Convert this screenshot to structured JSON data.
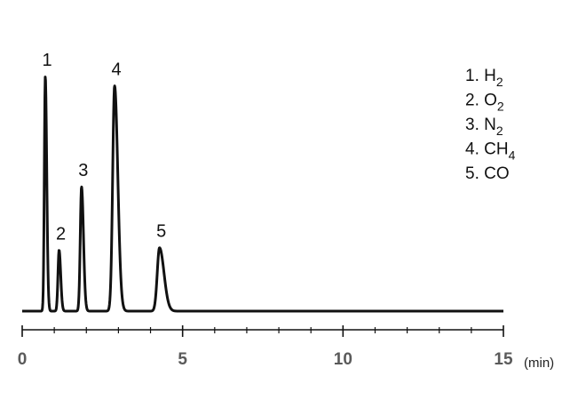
{
  "chart_data": {
    "type": "line",
    "title": "",
    "xlabel": "",
    "x_unit": "(min)",
    "ylabel": "",
    "xlim": [
      0,
      15
    ],
    "ylim": [
      0,
      1.05
    ],
    "grid": false,
    "legend_placement": "top-right",
    "x_ticks": [
      0,
      5,
      10,
      15
    ],
    "x_tick_labels": [
      "0",
      "5",
      "10",
      "15"
    ],
    "minor_tick_step": 1,
    "baseline": 0.0,
    "peaks": [
      {
        "label": "1",
        "rt": 0.72,
        "height": 1.0,
        "sigma_left": 0.03,
        "sigma_right": 0.045
      },
      {
        "label": "2",
        "rt": 1.15,
        "height": 0.26,
        "sigma_left": 0.035,
        "sigma_right": 0.05
      },
      {
        "label": "3",
        "rt": 1.85,
        "height": 0.53,
        "sigma_left": 0.04,
        "sigma_right": 0.06
      },
      {
        "label": "4",
        "rt": 2.88,
        "height": 0.96,
        "sigma_left": 0.06,
        "sigma_right": 0.1
      },
      {
        "label": "5",
        "rt": 4.28,
        "height": 0.27,
        "sigma_left": 0.07,
        "sigma_right": 0.14
      }
    ],
    "legend": [
      {
        "num": "1.",
        "base": "H",
        "sub": "2"
      },
      {
        "num": "2.",
        "base": "O",
        "sub": "2"
      },
      {
        "num": "3.",
        "base": "N",
        "sub": "2"
      },
      {
        "num": "4.",
        "base": "CH",
        "sub": "4"
      },
      {
        "num": "5.",
        "base": "CO",
        "sub": ""
      }
    ],
    "colors": {
      "trace": "#111111",
      "axis": "#111111",
      "tick_label": "#5a5a5a"
    }
  }
}
